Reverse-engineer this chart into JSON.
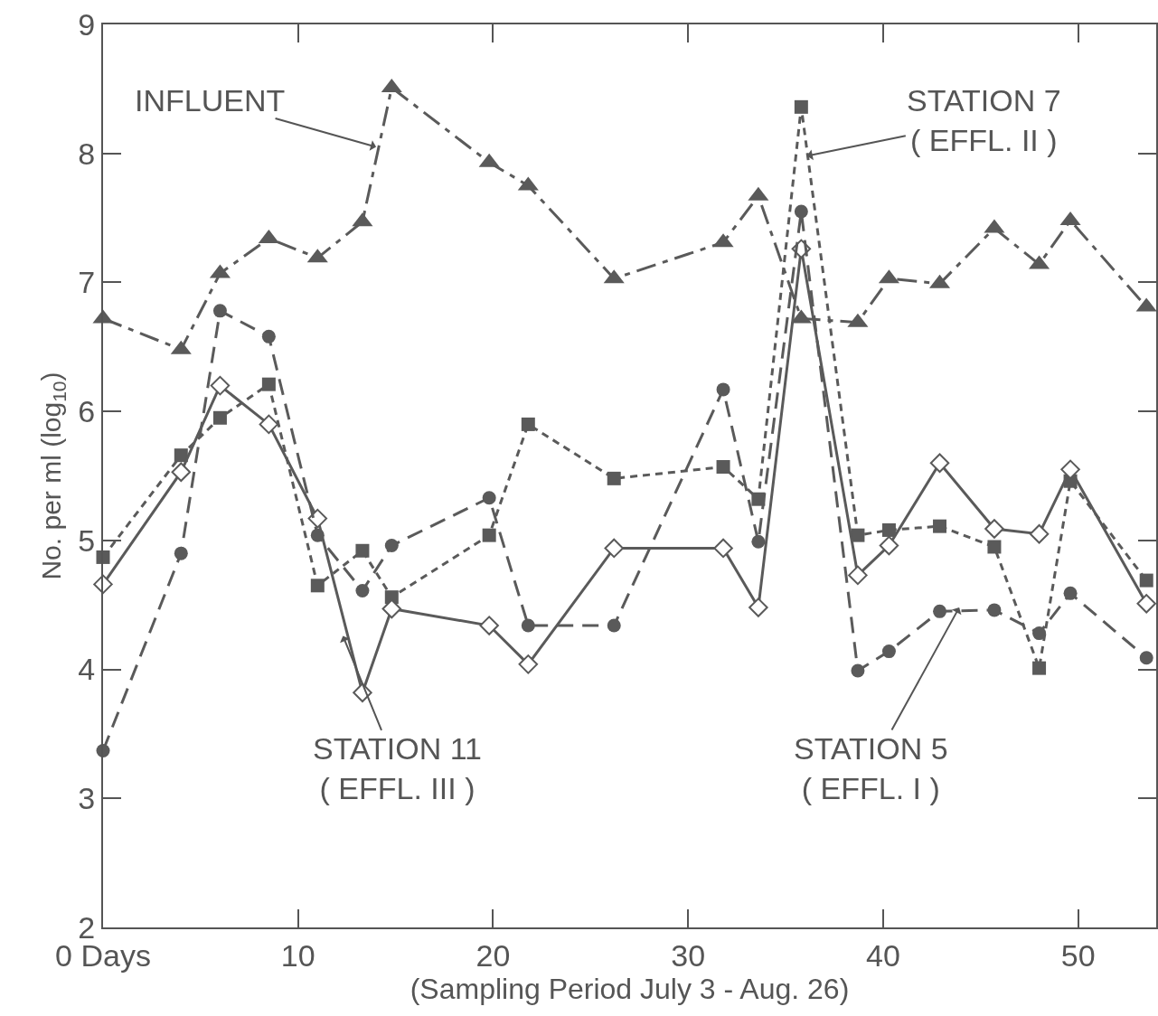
{
  "chart_data": {
    "type": "line",
    "xlabel": "(Sampling Period July 3 - Aug. 26)",
    "ylabel": "No. per ml (log$_{10}$)",
    "x": [
      0,
      4,
      6,
      8.5,
      11,
      13.3,
      14.8,
      19.8,
      21.8,
      26.2,
      31.8,
      33.6,
      35.8,
      38.7,
      40.3,
      42.9,
      45.7,
      48,
      49.6,
      53.5
    ],
    "series": [
      {
        "color": "#5a5a5a",
        "marker": "triangle",
        "line_style": "dashdot",
        "values": [
          6.72,
          6.48,
          7.07,
          7.34,
          7.19,
          7.47,
          8.51,
          7.93,
          7.75,
          7.03,
          7.31,
          7.67,
          6.72,
          6.69,
          7.03,
          6.99,
          7.42,
          7.14,
          7.48,
          6.81
        ]
      },
      {
        "color": "#5a5a5a",
        "marker": "square",
        "line_style": "dotted",
        "values": [
          4.87,
          5.66,
          5.95,
          6.21,
          4.65,
          4.92,
          4.56,
          5.04,
          5.9,
          5.48,
          5.57,
          5.32,
          8.36,
          5.04,
          5.08,
          5.11,
          4.95,
          4.01,
          5.46,
          4.69
        ]
      },
      {
        "color": "#5a5a5a",
        "marker": "diamond",
        "line_style": "solid",
        "values": [
          4.66,
          5.53,
          6.2,
          5.9,
          5.17,
          3.82,
          4.47,
          4.34,
          4.04,
          4.94,
          4.94,
          4.48,
          7.26,
          4.73,
          4.96,
          5.6,
          5.09,
          5.05,
          5.55,
          4.51
        ]
      },
      {
        "color": "#5a5a5a",
        "marker": "circle",
        "line_style": "dashed",
        "values": [
          3.37,
          4.9,
          6.78,
          6.58,
          5.04,
          4.61,
          4.96,
          5.33,
          4.34,
          4.34,
          6.17,
          4.99,
          7.55,
          3.99,
          4.14,
          4.45,
          4.46,
          4.28,
          4.59,
          4.09
        ]
      }
    ],
    "annotations": [
      {
        "text": "INFLUENT",
        "x": 14.0,
        "y": 8.05
      },
      {
        "text": "STATION 7\n( EFFL. II )",
        "x": 36.1,
        "y": 7.98
      },
      {
        "text": "STATION 11\n( EFFL. III )",
        "x": 12.3,
        "y": 4.26
      },
      {
        "text": "STATION 5\n( EFFL. I )",
        "x": 43.9,
        "y": 4.48
      }
    ],
    "xlim": [
      0,
      54
    ],
    "xticks": [
      {
        "value": 0,
        "label": "0 Days"
      },
      10,
      20,
      30,
      40,
      50
    ],
    "ylim": [
      2,
      9
    ],
    "yticks": [
      2,
      3,
      4,
      5,
      6,
      7,
      8,
      9
    ],
    "grid": false
  }
}
